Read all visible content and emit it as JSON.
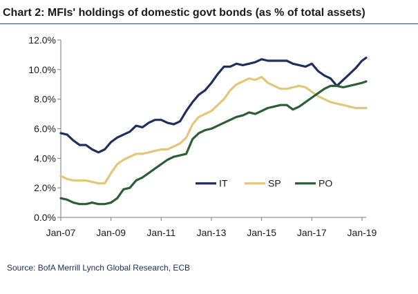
{
  "chart_title": "Chart 2: MFIs' holdings of domestic govt bonds (as % of total assets)",
  "source": "Source: BofA Merrill Lynch Global Research, ECB",
  "chart_data": {
    "type": "line",
    "title": "Chart 2: MFIs' holdings of domestic govt bonds (as % of total assets)",
    "xlabel": "",
    "ylabel": "",
    "ylim": [
      0,
      12
    ],
    "x_range": [
      "2007-01",
      "2019-03"
    ],
    "y_ticks": [
      0,
      2,
      4,
      6,
      8,
      10,
      12
    ],
    "y_tick_labels": [
      "0.0%",
      "2.0%",
      "4.0%",
      "6.0%",
      "8.0%",
      "10.0%",
      "12.0%"
    ],
    "x_ticks": [
      "2007-01",
      "2009-01",
      "2011-01",
      "2013-01",
      "2015-01",
      "2017-01",
      "2019-01"
    ],
    "x_tick_labels": [
      "Jan-07",
      "Jan-09",
      "Jan-11",
      "Jan-13",
      "Jan-15",
      "Jan-17",
      "Jan-19"
    ],
    "grid": false,
    "legend_position": "inside-lower-right",
    "series": [
      {
        "name": "IT",
        "color": "#1f2f5e",
        "x": [
          "2007-01",
          "2007-04",
          "2007-07",
          "2007-10",
          "2008-01",
          "2008-04",
          "2008-07",
          "2008-10",
          "2009-01",
          "2009-04",
          "2009-07",
          "2009-10",
          "2010-01",
          "2010-04",
          "2010-07",
          "2010-10",
          "2011-01",
          "2011-04",
          "2011-07",
          "2011-10",
          "2012-01",
          "2012-04",
          "2012-07",
          "2012-10",
          "2013-01",
          "2013-04",
          "2013-07",
          "2013-10",
          "2014-01",
          "2014-04",
          "2014-07",
          "2014-10",
          "2015-01",
          "2015-04",
          "2015-07",
          "2015-10",
          "2016-01",
          "2016-04",
          "2016-07",
          "2016-10",
          "2017-01",
          "2017-04",
          "2017-07",
          "2017-10",
          "2018-01",
          "2018-04",
          "2018-07",
          "2018-10",
          "2019-01",
          "2019-03"
        ],
        "values": [
          5.7,
          5.6,
          5.2,
          4.9,
          4.9,
          4.6,
          4.4,
          4.6,
          5.1,
          5.4,
          5.6,
          5.8,
          6.2,
          6.1,
          6.4,
          6.6,
          6.6,
          6.4,
          6.3,
          6.5,
          7.2,
          7.8,
          8.3,
          8.6,
          9.1,
          9.7,
          10.2,
          10.2,
          10.4,
          10.3,
          10.4,
          10.5,
          10.7,
          10.6,
          10.6,
          10.6,
          10.6,
          10.4,
          10.3,
          10.2,
          10.4,
          9.9,
          9.6,
          9.4,
          8.9,
          9.3,
          9.7,
          10.1,
          10.6,
          10.8
        ]
      },
      {
        "name": "SP",
        "color": "#e3c779",
        "x": [
          "2007-01",
          "2007-04",
          "2007-07",
          "2007-10",
          "2008-01",
          "2008-04",
          "2008-07",
          "2008-10",
          "2009-01",
          "2009-04",
          "2009-07",
          "2009-10",
          "2010-01",
          "2010-04",
          "2010-07",
          "2010-10",
          "2011-01",
          "2011-04",
          "2011-07",
          "2011-10",
          "2012-01",
          "2012-04",
          "2012-07",
          "2012-10",
          "2013-01",
          "2013-04",
          "2013-07",
          "2013-10",
          "2014-01",
          "2014-04",
          "2014-07",
          "2014-10",
          "2015-01",
          "2015-04",
          "2015-07",
          "2015-10",
          "2016-01",
          "2016-04",
          "2016-07",
          "2016-10",
          "2017-01",
          "2017-04",
          "2017-07",
          "2017-10",
          "2018-01",
          "2018-04",
          "2018-07",
          "2018-10",
          "2019-01",
          "2019-03"
        ],
        "values": [
          2.8,
          2.6,
          2.5,
          2.5,
          2.5,
          2.4,
          2.3,
          2.3,
          3.0,
          3.6,
          3.9,
          4.1,
          4.3,
          4.3,
          4.4,
          4.5,
          4.6,
          4.6,
          4.8,
          5.0,
          5.4,
          6.3,
          6.8,
          7.0,
          7.2,
          7.6,
          8.0,
          8.6,
          9.0,
          9.2,
          9.4,
          9.3,
          9.5,
          9.1,
          8.9,
          8.7,
          8.7,
          8.8,
          8.9,
          8.8,
          8.5,
          8.2,
          8.0,
          7.8,
          7.7,
          7.6,
          7.5,
          7.4,
          7.4,
          7.4
        ]
      },
      {
        "name": "PO",
        "color": "#2a5e35",
        "x": [
          "2007-01",
          "2007-04",
          "2007-07",
          "2007-10",
          "2008-01",
          "2008-04",
          "2008-07",
          "2008-10",
          "2009-01",
          "2009-04",
          "2009-07",
          "2009-10",
          "2010-01",
          "2010-04",
          "2010-07",
          "2010-10",
          "2011-01",
          "2011-04",
          "2011-07",
          "2011-10",
          "2012-01",
          "2012-04",
          "2012-07",
          "2012-10",
          "2013-01",
          "2013-04",
          "2013-07",
          "2013-10",
          "2014-01",
          "2014-04",
          "2014-07",
          "2014-10",
          "2015-01",
          "2015-04",
          "2015-07",
          "2015-10",
          "2016-01",
          "2016-04",
          "2016-07",
          "2016-10",
          "2017-01",
          "2017-04",
          "2017-07",
          "2017-10",
          "2018-01",
          "2018-04",
          "2018-07",
          "2018-10",
          "2019-01",
          "2019-03"
        ],
        "values": [
          1.3,
          1.2,
          1.0,
          0.9,
          0.9,
          1.0,
          0.9,
          0.9,
          1.0,
          1.3,
          1.9,
          2.0,
          2.5,
          2.7,
          3.0,
          3.3,
          3.6,
          3.9,
          4.1,
          4.2,
          4.3,
          5.3,
          5.7,
          5.9,
          6.0,
          6.2,
          6.4,
          6.6,
          6.8,
          6.9,
          7.1,
          7.0,
          7.2,
          7.4,
          7.5,
          7.6,
          7.6,
          7.3,
          7.5,
          7.8,
          8.1,
          8.4,
          8.7,
          8.9,
          8.9,
          8.8,
          8.9,
          9.0,
          9.1,
          9.2
        ]
      }
    ]
  }
}
